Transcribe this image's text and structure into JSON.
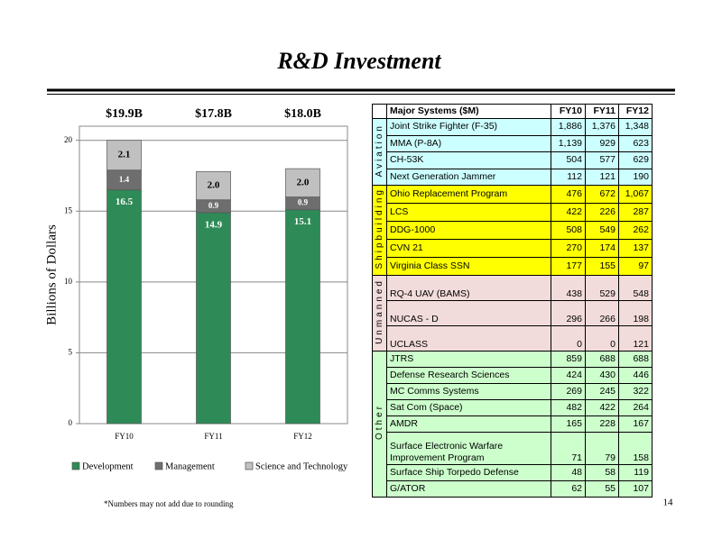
{
  "title": "R&D Investment",
  "chart_data": {
    "type": "stacked_bar",
    "ylabel": "Billions of Dollars",
    "categories": [
      "FY10",
      "FY11",
      "FY12"
    ],
    "series": [
      {
        "name": "Development",
        "color": "#2e8b57",
        "values": [
          16.5,
          14.9,
          15.1
        ],
        "value_labels": [
          "16.5",
          "14.9",
          "15.1"
        ]
      },
      {
        "name": "Management",
        "color": "#6e6e6e",
        "values": [
          1.4,
          0.9,
          0.9
        ],
        "value_labels": [
          "1.4",
          "0.9",
          "0.9"
        ]
      },
      {
        "name": "Science and Technology",
        "color": "#c0c0c0",
        "values": [
          2.1,
          2.0,
          2.0
        ],
        "value_labels": [
          "2.1",
          "2.0",
          "2.0"
        ]
      }
    ],
    "annotations": [
      "$19.9B",
      "$17.8B",
      "$18.0B"
    ],
    "ylim": [
      0,
      21
    ],
    "yticks": [
      0,
      5,
      10,
      15,
      20
    ],
    "grid": true,
    "legend": "bottom"
  },
  "table": {
    "header": [
      "Major Systems ($M)",
      "FY10",
      "FY11",
      "FY12"
    ],
    "groups": [
      {
        "label": "Aviation",
        "color": "#ccffff",
        "rows": [
          [
            "Joint Strike Fighter (F-35)",
            "1,886",
            "1,376",
            "1,348"
          ],
          [
            "MMA (P-8A)",
            "1,139",
            "929",
            "623"
          ],
          [
            "CH-53K",
            "504",
            "577",
            "629"
          ],
          [
            "Next Generation Jammer",
            "112",
            "121",
            "190"
          ]
        ]
      },
      {
        "label": "Shipbuilding",
        "color": "#ffff00",
        "rows": [
          [
            "Ohio Replacement Program",
            "476",
            "672",
            "1,067"
          ],
          [
            "LCS",
            "422",
            "226",
            "287"
          ],
          [
            "DDG-1000",
            "508",
            "549",
            "262"
          ],
          [
            "CVN 21",
            "270",
            "174",
            "137"
          ],
          [
            "Virginia Class SSN",
            "177",
            "155",
            "97"
          ]
        ]
      },
      {
        "label": "Unmanned",
        "color": "#f2dcdb",
        "rows": [
          [
            "RQ-4 UAV (BAMS)",
            "438",
            "529",
            "548"
          ],
          [
            "NUCAS - D",
            "296",
            "266",
            "198"
          ],
          [
            "UCLASS",
            "0",
            "0",
            "121"
          ]
        ]
      },
      {
        "label": "Other",
        "color": "#ccffcc",
        "rows": [
          [
            "JTRS",
            "859",
            "688",
            "688"
          ],
          [
            "Defense Research Sciences",
            "424",
            "430",
            "446"
          ],
          [
            "MC Comms Systems",
            "269",
            "245",
            "322"
          ],
          [
            "Sat Com (Space)",
            "482",
            "422",
            "264"
          ],
          [
            "AMDR",
            "165",
            "228",
            "167"
          ],
          [
            "Surface Electronic Warfare Improvement Program",
            "71",
            "79",
            "158"
          ],
          [
            "Surface Ship Torpedo Defense",
            "48",
            "58",
            "119"
          ],
          [
            "G/ATOR",
            "62",
            "55",
            "107"
          ]
        ]
      }
    ]
  },
  "footnote": "*Numbers may not add due to rounding",
  "page_number": "14"
}
